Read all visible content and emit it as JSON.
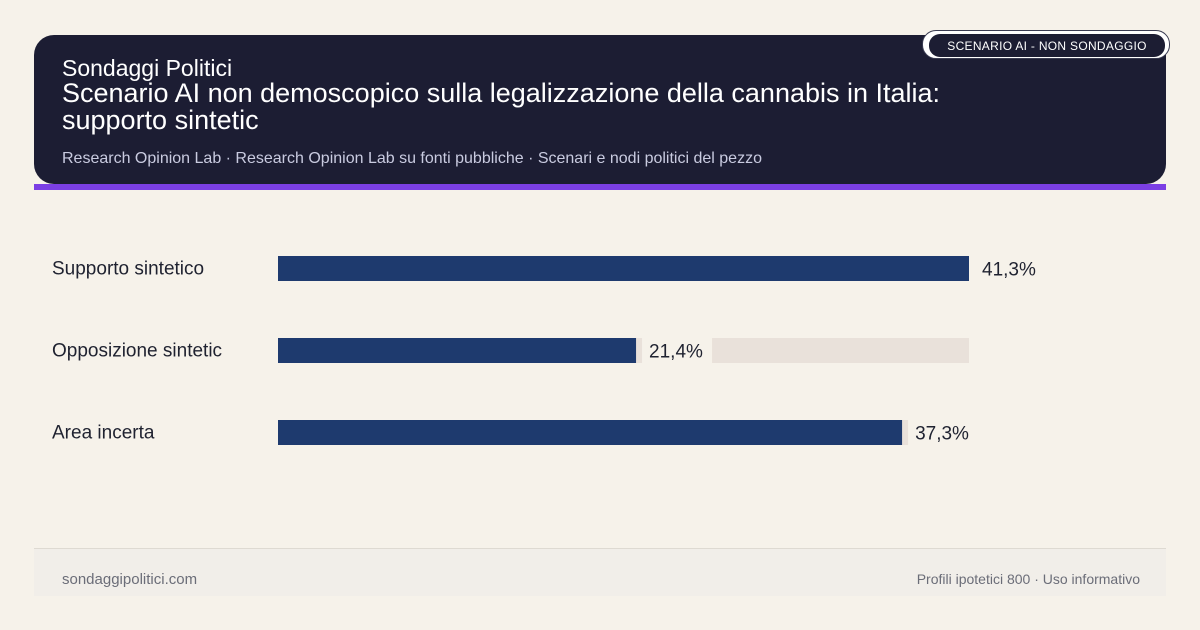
{
  "header": {
    "kicker": "Sondaggi Politici",
    "title": "Scenario AI non demoscopico sulla legalizzazione della cannabis in Italia: supporto sintetic",
    "subtitle": "Research Opinion Lab · Research Opinion Lab su fonti pubbliche · Scenari e nodi politici del pezzo",
    "badge": "SCENARIO AI - NON SONDAGGIO"
  },
  "chart_data": {
    "type": "bar",
    "orientation": "horizontal",
    "categories": [
      "Supporto sintetico",
      "Opposizione sintetic",
      "Area incerta"
    ],
    "values": [
      41.3,
      21.4,
      37.3
    ],
    "value_labels": [
      "41,3%",
      "21,4%",
      "37,3%"
    ],
    "xlim": [
      0,
      41.3
    ],
    "grid": false,
    "colors": {
      "bar": "#1e3a6e",
      "track": "#e9e1da"
    }
  },
  "footer": {
    "site": "sondaggipolitici.com",
    "note": "Profili ipotetici 800 · Uso informativo"
  }
}
